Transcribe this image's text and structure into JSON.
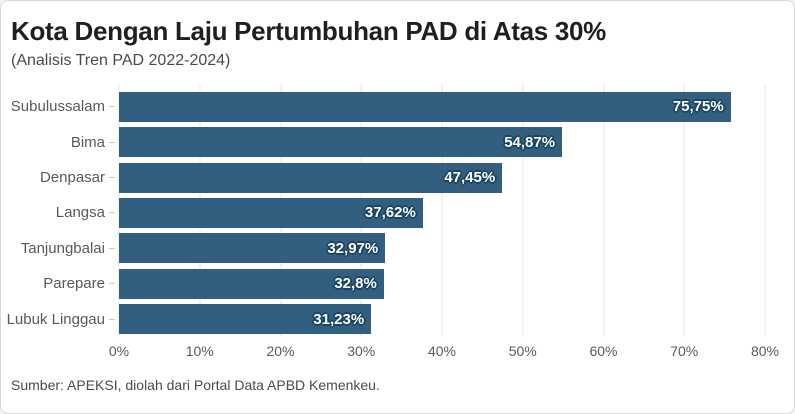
{
  "card": {
    "title": "Kota Dengan Laju Pertumbuhan PAD di Atas 30%",
    "subtitle": "(Analisis Tren PAD 2022-2024)",
    "source": "Sumber: APEKSI, diolah dari Portal Data APBD Kemenkeu."
  },
  "colors": {
    "bar": "#325F80",
    "bar_value_text": "#FFFFFF",
    "bar_value_outline": "#1B455F",
    "gridline": "#E4E4E4",
    "title_text": "#1F1F1F",
    "axis_text": "#595959",
    "card_border": "#D8D8D8",
    "background": "#FFFFFF"
  },
  "chart_data": {
    "type": "bar",
    "orientation": "horizontal",
    "title": "Kota Dengan Laju Pertumbuhan PAD di Atas 30%",
    "subtitle": "(Analisis Tren PAD 2022-2024)",
    "categories": [
      "Subulussalam",
      "Bima",
      "Denpasar",
      "Langsa",
      "Tanjungbalai",
      "Parepare",
      "Lubuk Linggau"
    ],
    "values": [
      75.75,
      54.87,
      47.45,
      37.62,
      32.97,
      32.8,
      31.23
    ],
    "value_labels": [
      "75,75%",
      "54,87%",
      "47,45%",
      "37,62%",
      "32,97%",
      "32,8%",
      "31,23%"
    ],
    "xlabel": "",
    "ylabel": "",
    "xlim": [
      0,
      80
    ],
    "x_ticks": [
      0,
      10,
      20,
      30,
      40,
      50,
      60,
      70,
      80
    ],
    "x_tick_labels": [
      "0%",
      "10%",
      "20%",
      "30%",
      "40%",
      "50%",
      "60%",
      "70%",
      "80%"
    ],
    "grid": "vertical",
    "legend": "none",
    "source": "Sumber: APEKSI, diolah dari Portal Data APBD Kemenkeu."
  }
}
